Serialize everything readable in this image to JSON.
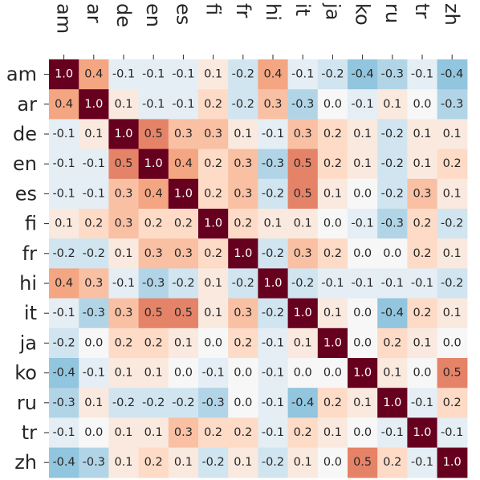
{
  "chart_data": {
    "type": "heatmap",
    "title": "",
    "xlabel": "",
    "ylabel": "",
    "x_labels": [
      "am",
      "ar",
      "de",
      "en",
      "es",
      "fi",
      "fr",
      "hi",
      "it",
      "ja",
      "ko",
      "ru",
      "tr",
      "zh"
    ],
    "y_labels": [
      "am",
      "ar",
      "de",
      "en",
      "es",
      "fi",
      "fr",
      "hi",
      "it",
      "ja",
      "ko",
      "ru",
      "tr",
      "zh"
    ],
    "x_tick_position": "top",
    "x_tick_rotation": "vertical",
    "value_range": [
      -1.0,
      1.0
    ],
    "colormap": "RdBu_r",
    "annotated": true,
    "colorbar": false,
    "values": [
      [
        1.0,
        0.4,
        -0.1,
        -0.1,
        -0.1,
        0.1,
        -0.2,
        0.4,
        -0.1,
        -0.2,
        -0.4,
        -0.3,
        -0.1,
        -0.4
      ],
      [
        0.4,
        1.0,
        0.1,
        -0.1,
        -0.1,
        0.2,
        -0.2,
        0.3,
        -0.3,
        0.0,
        -0.1,
        0.1,
        0.0,
        -0.3
      ],
      [
        -0.1,
        0.1,
        1.0,
        0.5,
        0.3,
        0.3,
        0.1,
        -0.1,
        0.3,
        0.2,
        0.1,
        -0.2,
        0.1,
        0.1
      ],
      [
        -0.1,
        -0.1,
        0.5,
        1.0,
        0.4,
        0.2,
        0.3,
        -0.3,
        0.5,
        0.2,
        0.1,
        -0.2,
        0.1,
        0.2
      ],
      [
        -0.1,
        -0.1,
        0.3,
        0.4,
        1.0,
        0.2,
        0.3,
        -0.2,
        0.5,
        0.1,
        0.0,
        -0.2,
        0.3,
        0.1
      ],
      [
        0.1,
        0.2,
        0.3,
        0.2,
        0.2,
        1.0,
        0.2,
        0.1,
        0.1,
        0.0,
        -0.1,
        -0.3,
        0.2,
        -0.2
      ],
      [
        -0.2,
        -0.2,
        0.1,
        0.3,
        0.3,
        0.2,
        1.0,
        -0.2,
        0.3,
        0.2,
        0.0,
        0.0,
        0.2,
        0.1
      ],
      [
        0.4,
        0.3,
        -0.1,
        -0.3,
        -0.2,
        0.1,
        -0.2,
        1.0,
        -0.2,
        -0.1,
        -0.1,
        -0.1,
        -0.1,
        -0.2
      ],
      [
        -0.1,
        -0.3,
        0.3,
        0.5,
        0.5,
        0.1,
        0.3,
        -0.2,
        1.0,
        0.1,
        0.0,
        -0.4,
        0.2,
        0.1
      ],
      [
        -0.2,
        0.0,
        0.2,
        0.2,
        0.1,
        0.0,
        0.2,
        -0.1,
        0.1,
        1.0,
        0.0,
        0.2,
        0.1,
        0.0
      ],
      [
        -0.4,
        -0.1,
        0.1,
        0.1,
        0.0,
        -0.1,
        0.0,
        -0.1,
        0.0,
        0.0,
        1.0,
        0.1,
        0.0,
        0.5
      ],
      [
        -0.3,
        0.1,
        -0.2,
        -0.2,
        -0.2,
        -0.3,
        0.0,
        -0.1,
        -0.4,
        0.2,
        0.1,
        1.0,
        -0.1,
        0.2
      ],
      [
        -0.1,
        0.0,
        0.1,
        0.1,
        0.3,
        0.2,
        0.2,
        -0.1,
        0.2,
        0.1,
        0.0,
        -0.1,
        1.0,
        -0.1
      ],
      [
        -0.4,
        -0.3,
        0.1,
        0.2,
        0.1,
        -0.2,
        0.1,
        -0.2,
        0.1,
        0.0,
        0.5,
        0.2,
        -0.1,
        1.0
      ]
    ]
  }
}
